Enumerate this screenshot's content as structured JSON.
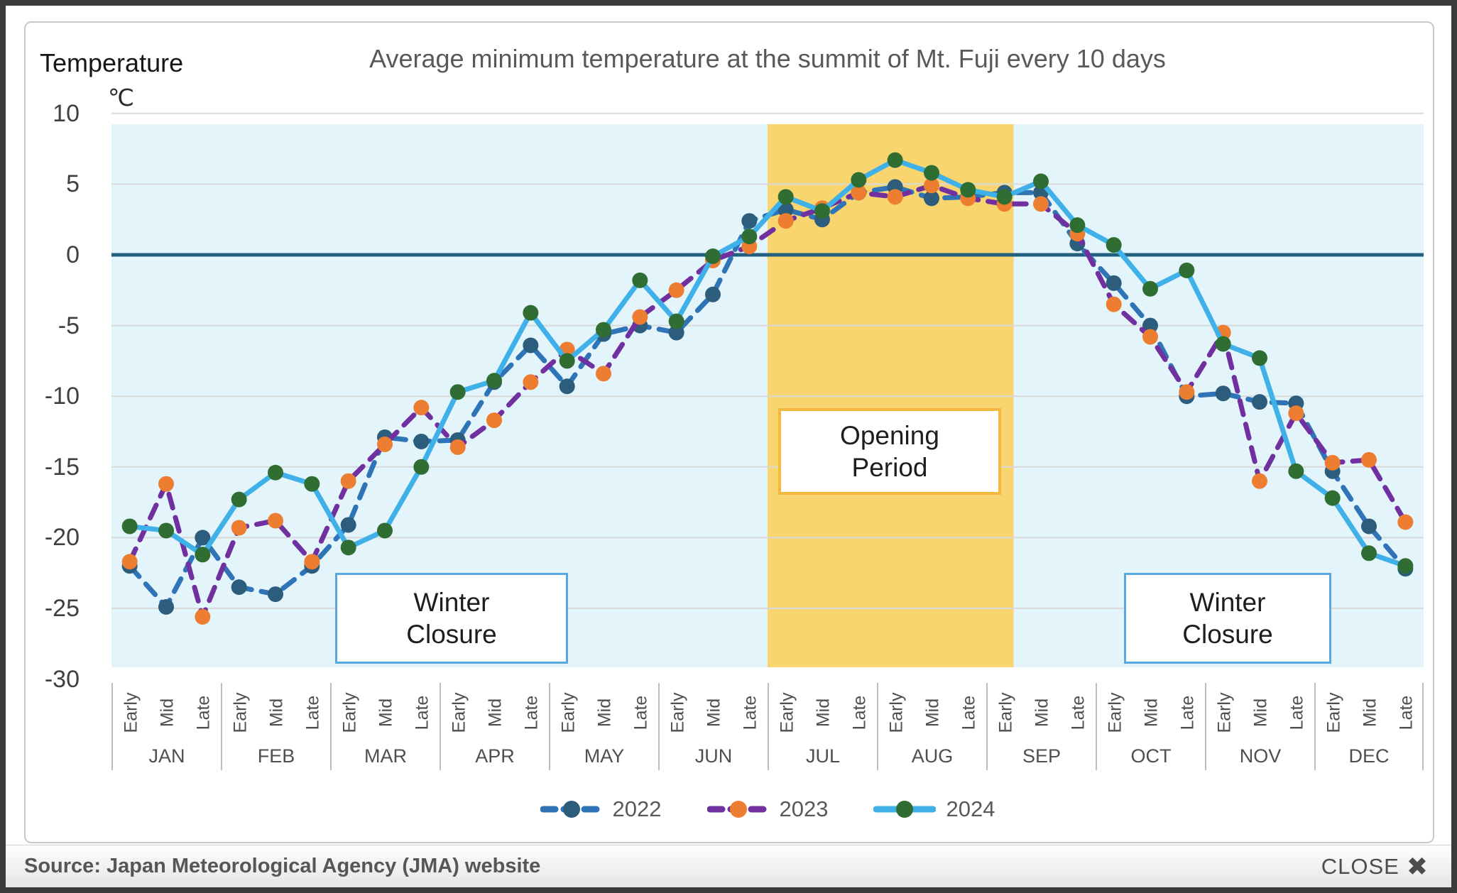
{
  "chart_data": {
    "type": "line",
    "title": "Average minimum temperature at the summit of Mt. Fuji every 10 days",
    "y_axis": {
      "title": "Temperature",
      "unit": "℃",
      "ticks": [
        10,
        5,
        0,
        -5,
        -10,
        -15,
        -20,
        -25,
        -30
      ]
    },
    "ylim": [
      -30,
      10
    ],
    "grid": true,
    "months": [
      "JAN",
      "FEB",
      "MAR",
      "APR",
      "MAY",
      "JUN",
      "JUL",
      "AUG",
      "SEP",
      "OCT",
      "NOV",
      "DEC"
    ],
    "slots": [
      "Early",
      "Mid",
      "Late"
    ],
    "series": [
      {
        "name": "2022",
        "dashed": true,
        "line_color": "#2e74b6",
        "marker_color": "#2c5d7c",
        "values": [
          -22.0,
          -24.9,
          -20.0,
          -23.5,
          -24.0,
          -22.0,
          -19.1,
          -12.9,
          -13.2,
          -13.1,
          -9.0,
          -6.4,
          -9.3,
          -5.6,
          -5.0,
          -5.5,
          -2.8,
          2.4,
          3.2,
          2.5,
          4.4,
          4.8,
          4.0,
          4.1,
          4.4,
          4.4,
          0.8,
          -2.0,
          -5.0,
          -10.0,
          -9.8,
          -10.4,
          -10.5,
          -15.3,
          -19.2,
          -22.2
        ]
      },
      {
        "name": "2023",
        "dashed": true,
        "line_color": "#7030a0",
        "marker_color": "#ec7d31",
        "values": [
          -21.7,
          -16.2,
          -25.6,
          -19.3,
          -18.8,
          -21.7,
          -16.0,
          -13.4,
          -10.8,
          -13.6,
          -11.7,
          -9.0,
          -6.7,
          -8.4,
          -4.4,
          -2.5,
          -0.4,
          0.6,
          2.4,
          3.3,
          4.4,
          4.1,
          4.9,
          4.0,
          3.6,
          3.6,
          1.5,
          -3.5,
          -5.8,
          -9.7,
          -5.5,
          -16.0,
          -11.2,
          -14.7,
          -14.5,
          -18.9
        ]
      },
      {
        "name": "2024",
        "dashed": false,
        "line_color": "#3fb0e8",
        "marker_color": "#2f6d33",
        "values": [
          -19.2,
          -19.5,
          -21.2,
          -17.3,
          -15.4,
          -16.2,
          -20.7,
          -19.5,
          -15.0,
          -9.7,
          -8.9,
          -4.1,
          -7.5,
          -5.3,
          -1.8,
          -4.7,
          -0.1,
          1.3,
          4.1,
          3.1,
          5.3,
          6.7,
          5.8,
          4.6,
          4.1,
          5.2,
          2.1,
          0.7,
          -2.4,
          -1.1,
          -6.3,
          -7.3,
          -15.3,
          -17.2,
          -21.1,
          -22.0
        ]
      }
    ],
    "opening_band": {
      "start_slot": 18,
      "end_slot": 24.75
    },
    "legend_position": "bottom",
    "annotations": [
      {
        "id": "winter-closure-left",
        "lines": [
          "Winter",
          "Closure"
        ]
      },
      {
        "id": "opening-period",
        "lines": [
          "Opening",
          "Period"
        ]
      },
      {
        "id": "winter-closure-right",
        "lines": [
          "Winter",
          "Closure"
        ]
      }
    ],
    "colors": {
      "plot_bg": "#e3f5fa",
      "band": "#f8d56e",
      "gridline": "#d9d9d9",
      "zero_line": "#21607f",
      "frame": "#3b3b3d",
      "panel_border": "#c9c9c9",
      "winter_box_border": "#59a9e1",
      "opening_box_border": "#f3ba3f"
    }
  },
  "footer": {
    "source": "Source: Japan Meteorological Agency (JMA) website",
    "close_label": "CLOSE"
  }
}
